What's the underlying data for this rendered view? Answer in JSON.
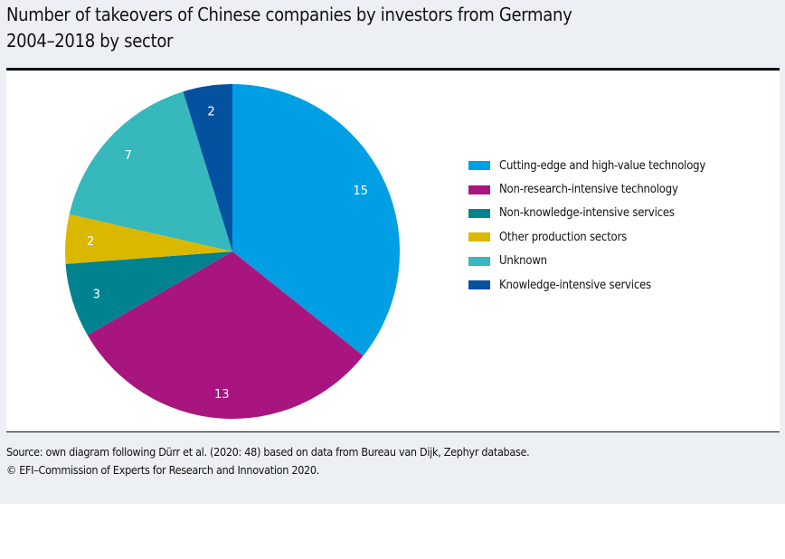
{
  "title_line1": "Number of takeovers of Chinese companies by investors from Germany",
  "title_line2": "2004–2018 by sector",
  "chart_data": {
    "type": "pie",
    "title": "Number of takeovers of Chinese companies by investors from Germany 2004–2018 by sector",
    "legend_position": "right",
    "start": "top, clockwise",
    "slices": [
      {
        "label": "Cutting-edge and high-value technology",
        "value": 15,
        "color": "#009fe3"
      },
      {
        "label": "Non-research-intensive technology",
        "value": 13,
        "color": "#a8157f"
      },
      {
        "label": "Non-knowledge-intensive services",
        "value": 3,
        "color": "#00838f"
      },
      {
        "label": "Other production sectors",
        "value": 2,
        "color": "#dbb800"
      },
      {
        "label": "Unknown",
        "value": 7,
        "color": "#36b8bc"
      },
      {
        "label": "Knowledge-intensive services",
        "value": 2,
        "color": "#0451a0"
      }
    ]
  },
  "source_line1": "Source: own diagram following Dürr et al. (2020: 48) based on data from Bureau van Dijk, Zephyr database.",
  "source_line2": "© EFI–Commission of Experts for Research and Innovation 2020."
}
